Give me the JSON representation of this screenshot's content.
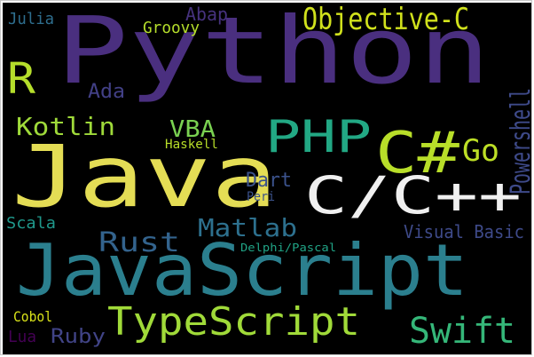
{
  "word_cloud": {
    "background": "#000000",
    "words": [
      {
        "text": "Python",
        "color": "#4a2f7f",
        "orientation": "horizontal"
      },
      {
        "text": "Java",
        "color": "#e4dd55",
        "orientation": "horizontal"
      },
      {
        "text": "JavaScript",
        "color": "#2b7f8e",
        "orientation": "horizontal"
      },
      {
        "text": "C/C++",
        "color": "#f0f0f0",
        "orientation": "horizontal"
      },
      {
        "text": "PHP",
        "color": "#22a884",
        "orientation": "horizontal"
      },
      {
        "text": "C#",
        "color": "#b8de29",
        "orientation": "horizontal"
      },
      {
        "text": "Objective-C",
        "color": "#d0e11c",
        "orientation": "horizontal"
      },
      {
        "text": "TypeScript",
        "color": "#a0da39",
        "orientation": "horizontal"
      },
      {
        "text": "Swift",
        "color": "#35b779",
        "orientation": "horizontal"
      },
      {
        "text": "R",
        "color": "#b5de2b",
        "orientation": "horizontal"
      },
      {
        "text": "Go",
        "color": "#bddf26",
        "orientation": "horizontal"
      },
      {
        "text": "Kotlin",
        "color": "#9fda3a",
        "orientation": "horizontal"
      },
      {
        "text": "Rust",
        "color": "#33638d",
        "orientation": "horizontal"
      },
      {
        "text": "Matlab",
        "color": "#2d708e",
        "orientation": "horizontal"
      },
      {
        "text": "Powershell",
        "color": "#3e4a89",
        "orientation": "vertical"
      },
      {
        "text": "VBA",
        "color": "#7ad151",
        "orientation": "horizontal"
      },
      {
        "text": "Dart",
        "color": "#3b528b",
        "orientation": "horizontal"
      },
      {
        "text": "Ada",
        "color": "#424086",
        "orientation": "horizontal"
      },
      {
        "text": "Abap",
        "color": "#46327e",
        "orientation": "horizontal"
      },
      {
        "text": "Julia",
        "color": "#2e6e8e",
        "orientation": "horizontal"
      },
      {
        "text": "Groovy",
        "color": "#b5de2b",
        "orientation": "horizontal"
      },
      {
        "text": "Haskell",
        "color": "#b8de29",
        "orientation": "horizontal"
      },
      {
        "text": "Peri",
        "color": "#3b528b",
        "orientation": "horizontal"
      },
      {
        "text": "Scala",
        "color": "#1f988b",
        "orientation": "horizontal"
      },
      {
        "text": "Visual Basic",
        "color": "#3e4a89",
        "orientation": "horizontal"
      },
      {
        "text": "Delphi/Pascal",
        "color": "#20a486",
        "orientation": "horizontal"
      },
      {
        "text": "Cobol",
        "color": "#d8e219",
        "orientation": "horizontal"
      },
      {
        "text": "Lua",
        "color": "#440154",
        "orientation": "horizontal"
      },
      {
        "text": "Ruby",
        "color": "#414487",
        "orientation": "horizontal"
      }
    ]
  }
}
